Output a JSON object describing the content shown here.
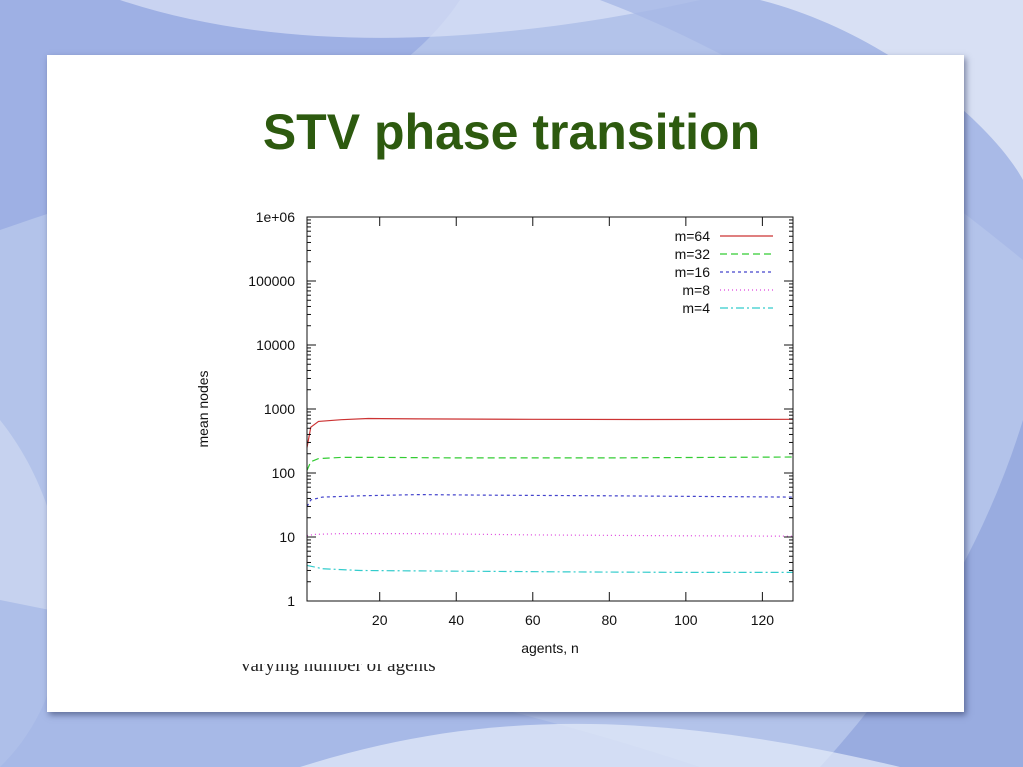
{
  "slide": {
    "title": "STV phase transition",
    "caption": "varying number of agents"
  },
  "chart_data": {
    "type": "line",
    "xlabel": "agents, n",
    "ylabel": "mean nodes",
    "xlim": [
      1,
      128
    ],
    "ylim": [
      1,
      1000000
    ],
    "yscale": "log",
    "xticks": [
      20,
      40,
      60,
      80,
      100,
      120
    ],
    "yticks": [
      1,
      10,
      100,
      1000,
      10000,
      100000,
      1000000
    ],
    "ytick_labels": [
      "1",
      "10",
      "100",
      "1000",
      "10000",
      "100000",
      "1e+06"
    ],
    "legend_position": "top-right",
    "grid": false,
    "series": [
      {
        "name": "m=64",
        "color": "#cc3333",
        "dash": "none",
        "x": [
          1,
          2,
          4,
          10,
          17,
          30,
          60,
          90,
          128
        ],
        "y": [
          250,
          520,
          640,
          680,
          710,
          700,
          690,
          685,
          690
        ]
      },
      {
        "name": "m=32",
        "color": "#33cc33",
        "dash": "7,4",
        "x": [
          1,
          2,
          4,
          10,
          20,
          40,
          80,
          128
        ],
        "y": [
          110,
          150,
          168,
          175,
          175,
          172,
          172,
          178
        ]
      },
      {
        "name": "m=16",
        "color": "#4444cc",
        "dash": "3,3",
        "x": [
          1,
          2,
          5,
          15,
          30,
          50,
          80,
          128
        ],
        "y": [
          30,
          38,
          42,
          44,
          46,
          45,
          44,
          42
        ]
      },
      {
        "name": "m=8",
        "color": "#dd44dd",
        "dash": "1,3",
        "x": [
          1,
          3,
          10,
          30,
          60,
          90,
          128
        ],
        "y": [
          10.5,
          11,
          11.3,
          11.3,
          10.8,
          10.5,
          10.3
        ]
      },
      {
        "name": "m=4",
        "color": "#33cccc",
        "dash": "8,3,2,3",
        "x": [
          1,
          5,
          15,
          30,
          50,
          70,
          100,
          128
        ],
        "y": [
          3.6,
          3.2,
          3.0,
          2.95,
          2.9,
          2.85,
          2.8,
          2.8
        ]
      }
    ]
  }
}
